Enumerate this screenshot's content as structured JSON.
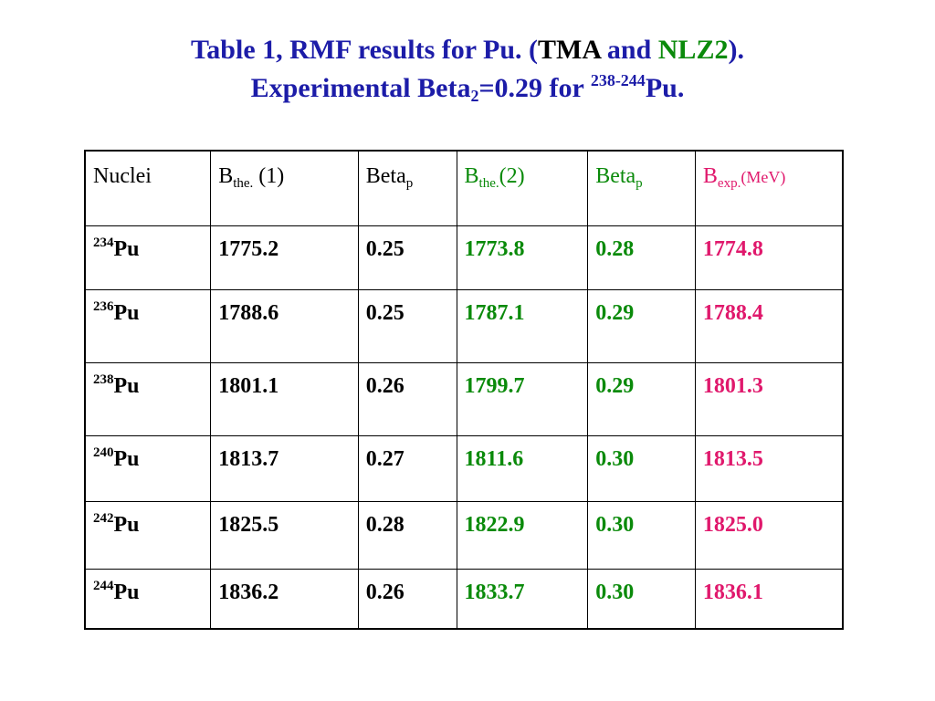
{
  "title": {
    "line1_part1": "Table 1,  RMF results for  Pu. (",
    "line1_tma": "TMA",
    "line1_and": " and ",
    "line1_nlz2": "NLZ2",
    "line1_close": ").",
    "line2_part1": "Experimental  Beta",
    "line2_sub": "2",
    "line2_part2": "=0.29 for ",
    "line2_sup": "238-244",
    "line2_part3": "Pu."
  },
  "header": {
    "nuclei": "Nuclei",
    "bthe1_main": "B",
    "bthe1_sub": "the.",
    "bthe1_suffix": " (1)",
    "beta1_main": "Beta",
    "beta1_sub": "p",
    "bthe2_main": "B",
    "bthe2_sub": "the.",
    "bthe2_suffix": "(2)",
    "beta2_main": "Beta",
    "beta2_sub": "p",
    "bexp_main": "B",
    "bexp_sub": "exp.",
    "bexp_unit": "(MeV)"
  },
  "colors": {
    "title_blue": "#1c1ca8",
    "tma_green": "#0a8a0a",
    "nlz2_green": "#0a8a0a",
    "exp_magenta": "#e0186c"
  },
  "rows": [
    {
      "mass": "234",
      "element": "Pu",
      "bthe1": "1775.2",
      "beta1": "0.25",
      "bthe2": "1773.8",
      "beta2": "0.28",
      "bexp": "1774.8"
    },
    {
      "mass": "236",
      "element": "Pu",
      "bthe1": "1788.6",
      "beta1": "0.25",
      "bthe2": "1787.1",
      "beta2": "0.29",
      "bexp": "1788.4"
    },
    {
      "mass": "238",
      "element": "Pu",
      "bthe1": "1801.1",
      "beta1": "0.26",
      "bthe2": "1799.7",
      "beta2": "0.29",
      "bexp": "1801.3"
    },
    {
      "mass": "240",
      "element": "Pu",
      "bthe1": "1813.7",
      "beta1": "0.27",
      "bthe2": "1811.6",
      "beta2": "0.30",
      "bexp": "1813.5"
    },
    {
      "mass": "242",
      "element": "Pu",
      "bthe1": "1825.5",
      "beta1": "0.28",
      "bthe2": "1822.9",
      "beta2": "0.30",
      "bexp": "1825.0"
    },
    {
      "mass": "244",
      "element": "Pu",
      "bthe1": "1836.2",
      "beta1": "0.26",
      "bthe2": "1833.7",
      "beta2": "0.30",
      "bexp": "1836.1"
    }
  ]
}
